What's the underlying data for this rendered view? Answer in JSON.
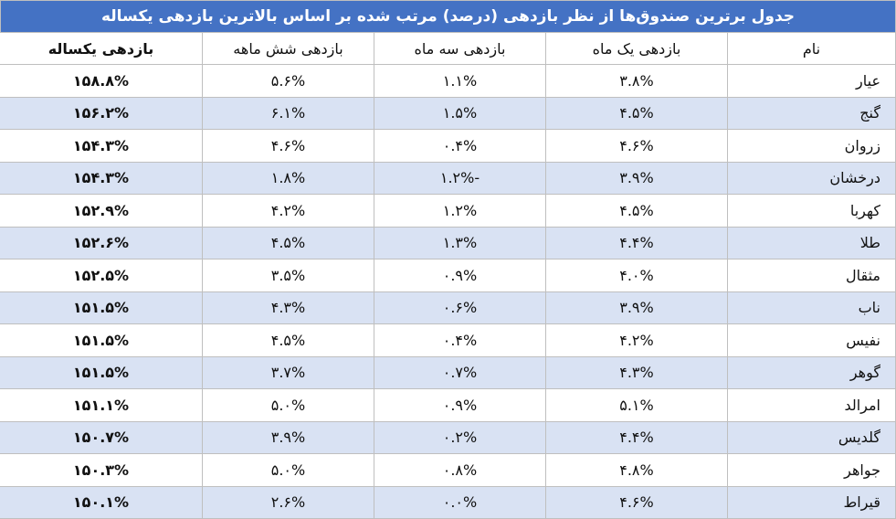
{
  "title": "جدول برترین صندوق‌ها از نظر بازدهی (درصد) مرتب شده بر اساس بالاترین بازدهی یکساله",
  "table": {
    "header": [
      "نام",
      "بازدهی یک ماه",
      "بازدهی سه ماه",
      "بازدهی شش ماهه",
      "بازدهی یکساله"
    ],
    "rows": [
      [
        "عیار",
        "۳.۸%",
        "۱.۱%",
        "۵.۶%",
        "۱۵۸.۸%"
      ],
      [
        "گنج",
        "۴.۵%",
        "۱.۵%",
        "۶.۱%",
        "۱۵۶.۲%"
      ],
      [
        "زروان",
        "۴.۶%",
        "۰.۴%",
        "۴.۶%",
        "۱۵۴.۳%"
      ],
      [
        "درخشان",
        "۳.۹%",
        "-۱.۲%",
        "۱.۸%",
        "۱۵۴.۳%"
      ],
      [
        "کهربا",
        "۴.۵%",
        "۱.۲%",
        "۴.۲%",
        "۱۵۲.۹%"
      ],
      [
        "طلا",
        "۴.۴%",
        "۱.۳%",
        "۴.۵%",
        "۱۵۲.۶%"
      ],
      [
        "مثقال",
        "۴.۰%",
        "۰.۹%",
        "۳.۵%",
        "۱۵۲.۵%"
      ],
      [
        "ناب",
        "۳.۹%",
        "۰.۶%",
        "۴.۳%",
        "۱۵۱.۵%"
      ],
      [
        "نفیس",
        "۴.۲%",
        "۰.۴%",
        "۴.۵%",
        "۱۵۱.۵%"
      ],
      [
        "گوهر",
        "۴.۳%",
        "۰.۷%",
        "۳.۷%",
        "۱۵۱.۵%"
      ],
      [
        "امرالد",
        "۵.۱%",
        "۰.۹%",
        "۵.۰%",
        "۱۵۱.۱%"
      ],
      [
        "گلدیس",
        "۴.۴%",
        "۰.۲%",
        "۳.۹%",
        "۱۵۰.۷%"
      ],
      [
        "جواهر",
        "۴.۸%",
        "۰.۸%",
        "۵.۰%",
        "۱۵۰.۳%"
      ],
      [
        "قیراط",
        "۴.۶%",
        "۰.۰%",
        "۲.۶%",
        "۱۵۰.۱%"
      ]
    ]
  }
}
